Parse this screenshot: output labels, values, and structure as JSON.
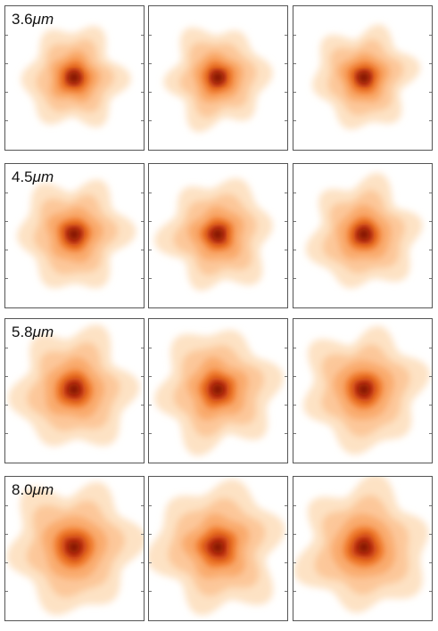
{
  "figure": {
    "rows": [
      {
        "band_value": "3.6",
        "band_unit": "μm"
      },
      {
        "band_value": "4.5",
        "band_unit": "μm"
      },
      {
        "band_value": "5.8",
        "band_unit": "μm"
      },
      {
        "band_value": "8.0",
        "band_unit": "μm"
      }
    ],
    "columns": 3,
    "colors": {
      "outer": "#fde2c4",
      "mid": "#f9a96a",
      "inner": "#f07a2a",
      "core": "#c2360f",
      "peak": "#7a0d05",
      "frame": "#555555"
    }
  }
}
